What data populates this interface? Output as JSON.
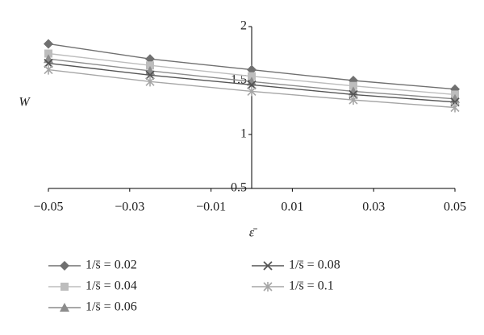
{
  "chart_data": {
    "type": "line",
    "x_label": "ε̄",
    "y_label": "W",
    "x": [
      -0.05,
      -0.025,
      0,
      0.025,
      0.05
    ],
    "xlim": [
      -0.05,
      0.05
    ],
    "xticks": [
      {
        "value": -0.05,
        "label": "−0.05"
      },
      {
        "value": -0.03,
        "label": "−0.03"
      },
      {
        "value": -0.01,
        "label": "−0.01"
      },
      0.01,
      0.03,
      0.05
    ],
    "ylim": [
      0.5,
      2
    ],
    "yticks": [
      0.5,
      1,
      1.5,
      2
    ],
    "series": [
      {
        "name": "1/s̄ = 0.02",
        "color": "#707070",
        "marker": "diamond",
        "values": [
          1.84,
          1.7,
          1.6,
          1.5,
          1.42
        ]
      },
      {
        "name": "1/s̄ = 0.04",
        "color": "#bdbdbd",
        "marker": "square",
        "values": [
          1.75,
          1.64,
          1.54,
          1.45,
          1.37
        ]
      },
      {
        "name": "1/s̄ = 0.06",
        "color": "#8c8c8c",
        "marker": "triangle",
        "values": [
          1.7,
          1.59,
          1.49,
          1.4,
          1.33
        ]
      },
      {
        "name": "1/s̄ = 0.08",
        "color": "#555555",
        "marker": "x",
        "values": [
          1.66,
          1.55,
          1.46,
          1.37,
          1.3
        ]
      },
      {
        "name": "1/s̄ = 0.1",
        "color": "#a6a6a6",
        "marker": "star",
        "values": [
          1.6,
          1.49,
          1.4,
          1.32,
          1.25
        ]
      }
    ]
  }
}
